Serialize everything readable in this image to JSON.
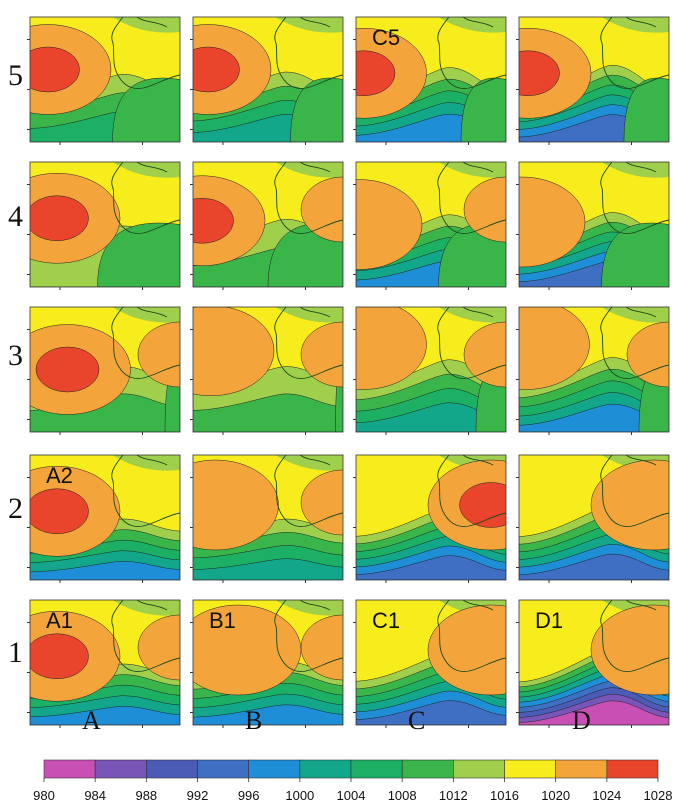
{
  "figure": {
    "row_labels": [
      "5",
      "4",
      "3",
      "2",
      "1"
    ],
    "column_labels": [
      "A",
      "B",
      "C",
      "D"
    ],
    "panel_labels": [
      {
        "row": "5",
        "col": "C",
        "text": "C5"
      },
      {
        "row": "2",
        "col": "A",
        "text": "A2"
      },
      {
        "row": "1",
        "col": "A",
        "text": "A1"
      },
      {
        "row": "1",
        "col": "B",
        "text": "B1"
      },
      {
        "row": "1",
        "col": "C",
        "text": "C1"
      },
      {
        "row": "1",
        "col": "D",
        "text": "D1"
      }
    ]
  },
  "colorbar": {
    "ticks": [
      "980",
      "984",
      "988",
      "992",
      "996",
      "1000",
      "1004",
      "1008",
      "1012",
      "1016",
      "1020",
      "1024",
      "1028"
    ],
    "colors": [
      "#c84fb4",
      "#7a55b8",
      "#4b5cb6",
      "#3f6fc2",
      "#1e8fd6",
      "#12a68a",
      "#1bb064",
      "#39b549",
      "#9fcf4b",
      "#f7ec1c",
      "#f3a43b",
      "#e8452c"
    ]
  },
  "panels": {
    "5": {
      "A": {
        "high": [
          0.12,
          0.42
        ],
        "highLevel": 5,
        "lowIntrusion": 0.45,
        "southSlope": 0.9,
        "southMin": 6,
        "eastHigh": 0
      },
      "B": {
        "high": [
          0.1,
          0.42
        ],
        "highLevel": 5,
        "lowIntrusion": 0.35,
        "southSlope": 1.0,
        "southMin": 5,
        "eastHigh": 0
      },
      "C": {
        "high": [
          0.05,
          0.45
        ],
        "highLevel": 5,
        "lowIntrusion": 0.3,
        "southSlope": 1.2,
        "southMin": 4,
        "eastHigh": 0
      },
      "D": {
        "high": [
          0.06,
          0.45
        ],
        "highLevel": 5,
        "lowIntrusion": 0.3,
        "southSlope": 1.3,
        "southMin": 3,
        "eastHigh": 0
      }
    },
    "4": {
      "A": {
        "high": [
          0.18,
          0.45
        ],
        "highLevel": 5,
        "lowIntrusion": 0.55,
        "southSlope": 0.6,
        "southMin": 8,
        "eastHigh": 0
      },
      "B": {
        "high": [
          0.06,
          0.47
        ],
        "highLevel": 5,
        "lowIntrusion": 0.5,
        "southSlope": 0.9,
        "southMin": 7,
        "eastHigh": 1
      },
      "C": {
        "high": [
          0.02,
          0.5
        ],
        "highLevel": 4,
        "lowIntrusion": 0.45,
        "southSlope": 1.1,
        "southMin": 4,
        "eastHigh": 1
      },
      "D": {
        "high": [
          0.02,
          0.48
        ],
        "highLevel": 4,
        "lowIntrusion": 0.45,
        "southSlope": 1.2,
        "southMin": 3,
        "eastHigh": 0
      }
    },
    "3": {
      "A": {
        "high": [
          0.25,
          0.5
        ],
        "highLevel": 5,
        "lowIntrusion": 0.1,
        "southSlope": 0.8,
        "southMin": 7,
        "eastHigh": 1
      },
      "B": {
        "high": [
          0.12,
          0.35
        ],
        "highLevel": 4,
        "lowIntrusion": 0.05,
        "southSlope": 0.8,
        "southMin": 7,
        "eastHigh": 1
      },
      "C": {
        "high": [
          0.05,
          0.3
        ],
        "highLevel": 4,
        "lowIntrusion": 0.2,
        "southSlope": 1.1,
        "southMin": 5,
        "eastHigh": 1
      },
      "D": {
        "high": [
          0.05,
          0.3
        ],
        "highLevel": 4,
        "lowIntrusion": 0.2,
        "southSlope": 1.2,
        "southMin": 4,
        "eastHigh": 1
      }
    },
    "2": {
      "A": {
        "high": [
          0.18,
          0.45
        ],
        "highLevel": 5,
        "lowIntrusion": 0.0,
        "southSlope": 0.6,
        "southMin": 4,
        "eastHigh": 0
      },
      "B": {
        "high": [
          0.15,
          0.4
        ],
        "highLevel": 4,
        "lowIntrusion": 0.0,
        "southSlope": 0.6,
        "southMin": 5,
        "eastHigh": 1
      },
      "C": {
        "high": [
          0.9,
          0.4
        ],
        "highLevel": 5,
        "lowIntrusion": 0.0,
        "southSlope": 1.1,
        "southMin": 3,
        "eastHigh": 1
      },
      "D": {
        "high": [
          0.9,
          0.4
        ],
        "highLevel": 4,
        "lowIntrusion": 0.0,
        "southSlope": 1.2,
        "southMin": 3,
        "eastHigh": 1
      }
    },
    "1": {
      "A": {
        "high": [
          0.18,
          0.45
        ],
        "highLevel": 5,
        "lowIntrusion": 0.0,
        "southSlope": 0.6,
        "southMin": 4,
        "eastHigh": 1
      },
      "B": {
        "high": [
          0.3,
          0.4
        ],
        "highLevel": 4,
        "lowIntrusion": 0.0,
        "southSlope": 0.7,
        "southMin": 4,
        "eastHigh": 1
      },
      "C": {
        "high": [
          0.9,
          0.4
        ],
        "highLevel": 4,
        "lowIntrusion": 0.0,
        "southSlope": 1.1,
        "southMin": 3,
        "eastHigh": 1
      },
      "D": {
        "high": [
          0.9,
          0.4
        ],
        "highLevel": 4,
        "lowIntrusion": 0.0,
        "southSlope": 1.3,
        "southMin": 0,
        "eastHigh": 1
      }
    }
  }
}
